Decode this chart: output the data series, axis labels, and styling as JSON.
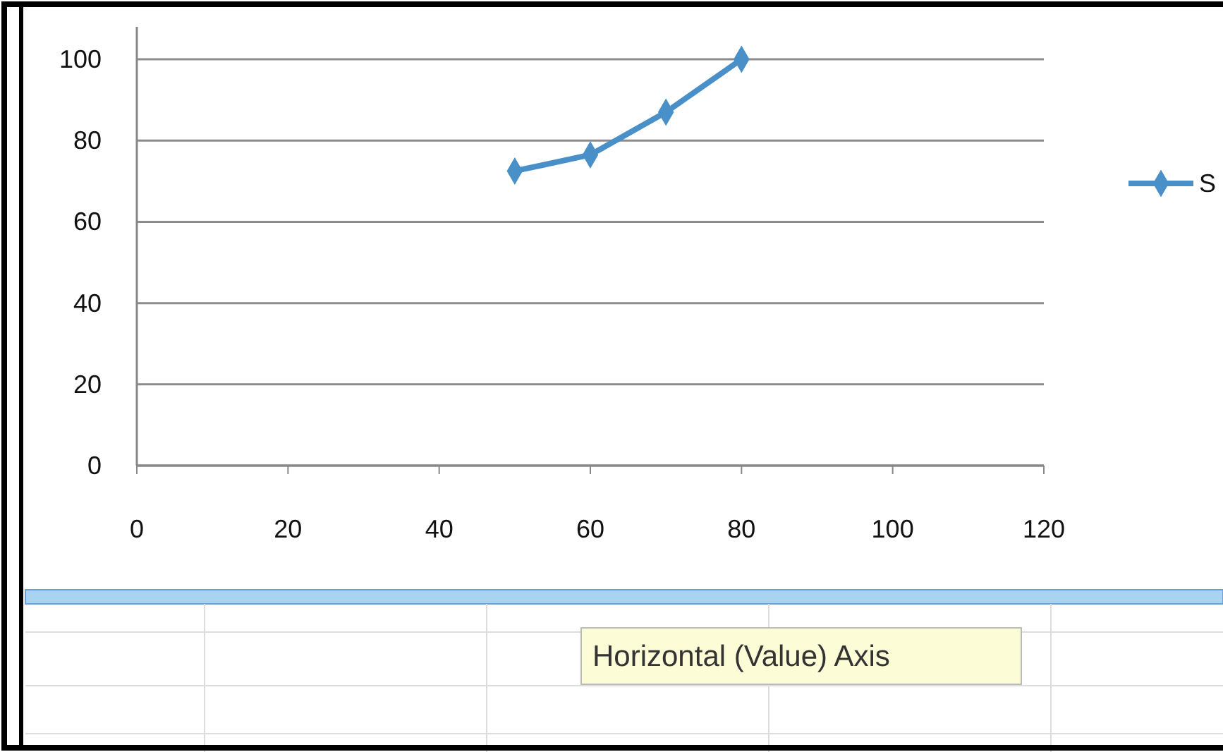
{
  "chart_data": {
    "type": "line",
    "x": [
      50,
      60,
      70,
      80
    ],
    "series": [
      {
        "name": "S",
        "color": "#4a90c8",
        "values": [
          72.5,
          76.5,
          87,
          100
        ]
      }
    ],
    "xlim": [
      0,
      120
    ],
    "xticks": [
      0,
      20,
      40,
      60,
      80,
      100,
      120
    ],
    "ylim": [
      0,
      108
    ],
    "yticks": [
      0,
      20,
      40,
      60,
      80,
      100
    ],
    "grid": "y",
    "legend": "right",
    "marker": "diamond",
    "line_style": "solid",
    "annotations": [
      "Horizontal (Value) Axis"
    ]
  }
}
